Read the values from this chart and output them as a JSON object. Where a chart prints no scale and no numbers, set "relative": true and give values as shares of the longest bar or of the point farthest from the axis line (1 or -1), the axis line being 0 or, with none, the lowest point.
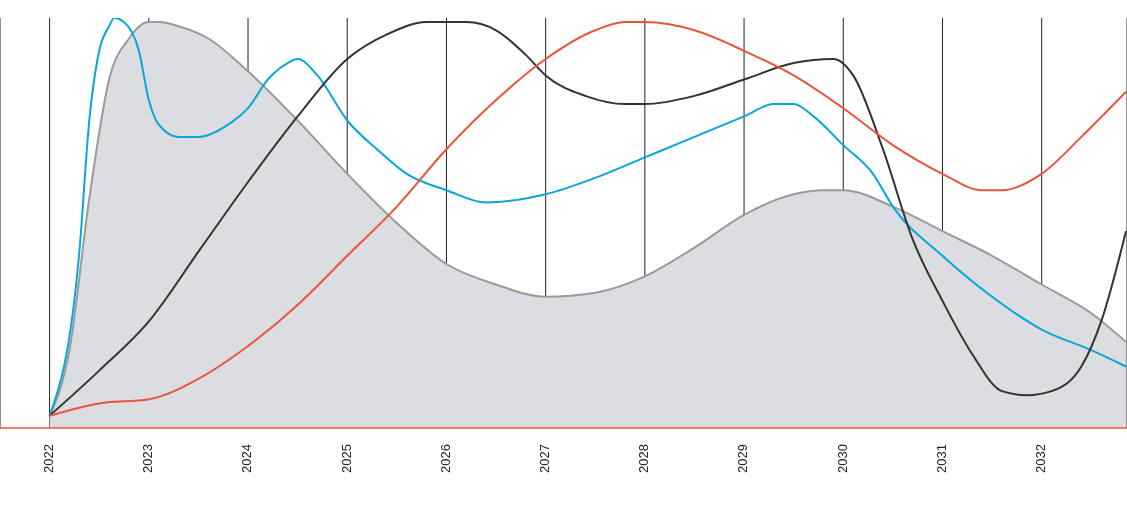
{
  "chart_data": {
    "type": "line",
    "relative": true,
    "grid": "x",
    "marker": "none",
    "line_style": "solid",
    "xlim": [
      2021.5,
      2032.86
    ],
    "xticks": [
      2022,
      2023,
      2024,
      2025,
      2026,
      2027,
      2028,
      2029,
      2030,
      2031,
      2032
    ],
    "series": [
      {
        "type": "area",
        "color": "#9a9a9a",
        "x": [
          2022,
          2022.2,
          2022.4,
          2022.6,
          2022.8,
          2023,
          2023.1,
          2023.3,
          2023.6,
          2024,
          2024.5,
          2025,
          2025.5,
          2026,
          2026.5,
          2027,
          2027.5,
          2028,
          2028.5,
          2029,
          2029.5,
          2029.8,
          2030,
          2030.5,
          2031,
          2031.5,
          2032,
          2032.5,
          2032.85
        ],
        "values": [
          0.03,
          0.19,
          0.56,
          0.85,
          0.95,
          0.99,
          0.99,
          0.98,
          0.95,
          0.87,
          0.75,
          0.62,
          0.5,
          0.4,
          0.35,
          0.32,
          0.33,
          0.37,
          0.44,
          0.52,
          0.57,
          0.58,
          0.58,
          0.54,
          0.48,
          0.42,
          0.35,
          0.28,
          0.21
        ]
      },
      {
        "color": "#0aa5dc",
        "x": [
          2022,
          2022.3,
          2022.4,
          2022.5,
          2022.6,
          2022.65,
          2022.75,
          2022.9,
          2023,
          2023.1,
          2023.3,
          2023.5,
          2023.8,
          2024,
          2024.2,
          2024.4,
          2024.5,
          2024.7,
          2025,
          2025.3,
          2025.6,
          2026,
          2026.4,
          2026.8,
          2027,
          2027.5,
          2028,
          2028.5,
          2029,
          2029.3,
          2029.5,
          2029.7,
          2030,
          2030.3,
          2030.5,
          2031,
          2031.5,
          2032,
          2032.5,
          2032.85
        ],
        "values": [
          0.03,
          0.43,
          0.75,
          0.92,
          0.98,
          1,
          0.99,
          0.92,
          0.8,
          0.74,
          0.71,
          0.71,
          0.74,
          0.78,
          0.85,
          0.89,
          0.9,
          0.86,
          0.75,
          0.68,
          0.62,
          0.58,
          0.55,
          0.56,
          0.57,
          0.61,
          0.66,
          0.71,
          0.76,
          0.79,
          0.79,
          0.76,
          0.69,
          0.62,
          0.54,
          0.42,
          0.32,
          0.24,
          0.19,
          0.15
        ]
      },
      {
        "color": "#333333",
        "x": [
          2022,
          2022.5,
          2023,
          2023.5,
          2024,
          2024.5,
          2025,
          2025.4,
          2025.8,
          2026.2,
          2026.5,
          2026.8,
          2027,
          2027.4,
          2027.8,
          2028,
          2028.5,
          2029,
          2029.5,
          2029.9,
          2030.1,
          2030.4,
          2030.7,
          2031,
          2031.3,
          2031.6,
          2031.85,
          2032.1,
          2032.4,
          2032.6,
          2032.85
        ],
        "values": [
          0.03,
          0.14,
          0.26,
          0.43,
          0.6,
          0.76,
          0.9,
          0.96,
          0.99,
          0.99,
          0.97,
          0.91,
          0.86,
          0.81,
          0.79,
          0.79,
          0.81,
          0.85,
          0.89,
          0.9,
          0.86,
          0.68,
          0.46,
          0.31,
          0.18,
          0.09,
          0.08,
          0.09,
          0.15,
          0.26,
          0.48
        ]
      },
      {
        "color": "#e8553a",
        "x": [
          2022,
          2022.5,
          2023,
          2023.5,
          2024,
          2024.5,
          2025,
          2025.5,
          2026,
          2026.5,
          2027,
          2027.5,
          2027.8,
          2028,
          2028.5,
          2029,
          2029.5,
          2030,
          2030.5,
          2031,
          2031.4,
          2031.6,
          2032,
          2032.4,
          2032.85
        ],
        "values": [
          0.03,
          0.06,
          0.07,
          0.12,
          0.2,
          0.3,
          0.42,
          0.54,
          0.68,
          0.8,
          0.9,
          0.97,
          0.99,
          0.99,
          0.97,
          0.92,
          0.86,
          0.78,
          0.69,
          0.62,
          0.58,
          0.58,
          0.62,
          0.71,
          0.82
        ]
      }
    ]
  }
}
